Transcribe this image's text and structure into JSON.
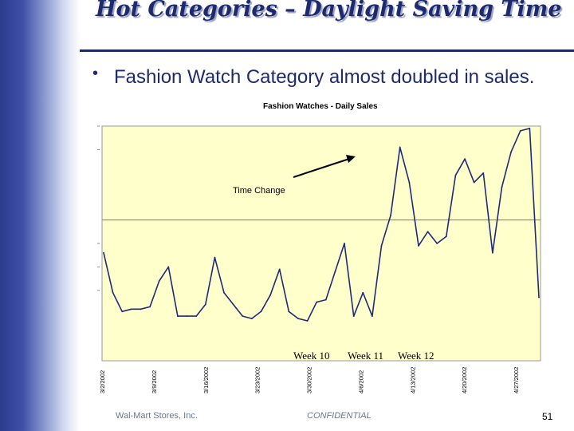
{
  "slide": {
    "title": "Hot Categories – Daylight Saving Time",
    "bullet": "Fashion Watch Category almost doubled in sales.",
    "footer_left": "Wal-Mart Stores, Inc.",
    "footer_center": "CONFIDENTIAL",
    "page_number": "51"
  },
  "colors": {
    "brand": "#1e2a6e",
    "plot_background": "#ffffcc",
    "line": "#1f2a78"
  },
  "chart_data": {
    "type": "line",
    "title": "Fashion Watches - Daily Sales",
    "annotation": "Time Change",
    "week_labels": [
      "Week 10",
      "Week 11",
      "Week 12"
    ],
    "x_tick_labels": [
      "3/2/2002",
      "3/9/2002",
      "3/16/2002",
      "3/23/2002",
      "3/30/2002",
      "4/6/2002",
      "4/13/2002",
      "4/20/2002",
      "4/27/2002"
    ],
    "y_range": [
      0,
      100
    ],
    "y_gridline": 60,
    "series": [
      {
        "values": [
          46,
          29,
          21,
          22,
          22,
          23,
          34,
          40,
          19,
          19,
          19,
          24,
          44,
          29,
          24,
          19,
          18,
          21,
          28,
          39,
          21,
          18,
          17,
          25,
          26,
          38,
          50,
          19,
          29,
          19,
          49,
          62,
          91,
          76,
          49,
          55,
          50,
          53,
          79,
          86,
          76,
          80,
          46,
          74,
          89,
          98,
          99,
          27
        ]
      }
    ]
  }
}
